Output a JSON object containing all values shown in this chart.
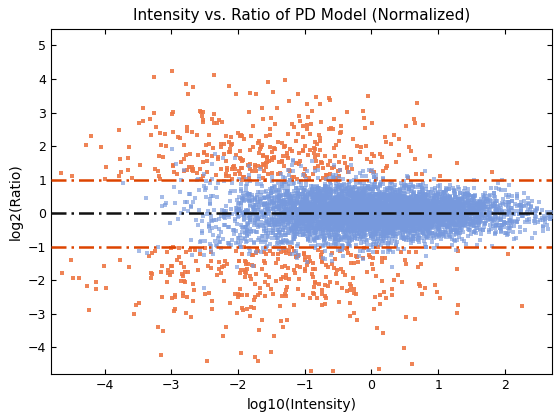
{
  "title": "Intensity vs. Ratio of PD Model (Normalized)",
  "xlabel": "log10(Intensity)",
  "ylabel": "log2(Ratio)",
  "xlim": [
    -4.8,
    2.7
  ],
  "ylim": [
    -4.8,
    5.5
  ],
  "xticks": [
    -4,
    -3,
    -2,
    -1,
    0,
    1,
    2
  ],
  "yticks": [
    -4,
    -3,
    -2,
    -1,
    0,
    1,
    2,
    3,
    4,
    5
  ],
  "hline_zero": 0,
  "hline_threshold": 1,
  "hline_color": "#DD4400",
  "zero_line_color": "#111111",
  "blue_color": "#7799DD",
  "orange_color": "#EE7744",
  "n_blue": 6000,
  "n_orange": 600,
  "seed": 99
}
